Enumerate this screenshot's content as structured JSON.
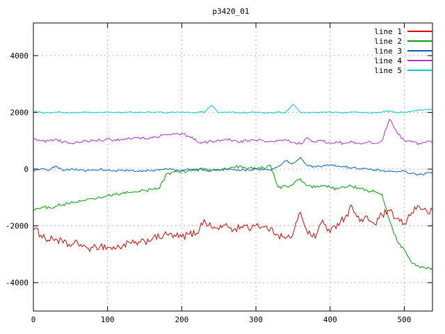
{
  "chart_data": {
    "type": "line",
    "title": "p3420_01",
    "xlabel": "",
    "ylabel": "",
    "xlim": [
      0,
      538
    ],
    "ylim": [
      -5000,
      5150
    ],
    "x_ticks": [
      0,
      100,
      200,
      300,
      400,
      500
    ],
    "y_ticks": [
      -4000,
      -2000,
      0,
      2000,
      4000
    ],
    "grid": true,
    "legend_position": "top-right",
    "x_step": 10,
    "series": [
      {
        "name": "line 1",
        "color": "#dd0000",
        "noise": 130,
        "values": [
          -2100,
          -2300,
          -2500,
          -2450,
          -2600,
          -2700,
          -2600,
          -2750,
          -2800,
          -2700,
          -2750,
          -2800,
          -2700,
          -2600,
          -2650,
          -2550,
          -2450,
          -2400,
          -2300,
          -2350,
          -2400,
          -2300,
          -2250,
          -1800,
          -2050,
          -2100,
          -1950,
          -2150,
          -2000,
          -2100,
          -1950,
          -2050,
          -2100,
          -2300,
          -2450,
          -2300,
          -1500,
          -2250,
          -2400,
          -1800,
          -2250,
          -1900,
          -1700,
          -1300,
          -1850,
          -1700,
          -1950,
          -1600,
          -1500,
          -1750,
          -1950,
          -1500,
          -1300,
          -1500
        ]
      },
      {
        "name": "line 2",
        "color": "#00a000",
        "noise": 60,
        "values": [
          -1400,
          -1380,
          -1340,
          -1300,
          -1250,
          -1200,
          -1150,
          -1100,
          -1050,
          -1000,
          -950,
          -900,
          -860,
          -820,
          -790,
          -760,
          -720,
          -680,
          -150,
          -100,
          -80,
          -50,
          -30,
          0,
          -60,
          -20,
          0,
          50,
          100,
          40,
          0,
          60,
          100,
          -650,
          -600,
          -550,
          -350,
          -600,
          -650,
          -600,
          -650,
          -700,
          -650,
          -600,
          -700,
          -750,
          -800,
          -900,
          -1800,
          -2500,
          -2850,
          -3300,
          -3450,
          -3500
        ]
      },
      {
        "name": "line 3",
        "color": "#0060c0",
        "noise": 40,
        "values": [
          -30,
          0,
          -60,
          100,
          -60,
          0,
          -30,
          -80,
          -30,
          0,
          -50,
          -60,
          -40,
          -60,
          -80,
          -60,
          -50,
          -30,
          0,
          -20,
          -40,
          -20,
          0,
          -30,
          -50,
          -30,
          0,
          -30,
          -50,
          -20,
          0,
          -20,
          -50,
          100,
          300,
          200,
          420,
          120,
          60,
          100,
          150,
          100,
          80,
          50,
          20,
          0,
          -20,
          -50,
          -80,
          -100,
          -80,
          -150,
          -200,
          -150
        ]
      },
      {
        "name": "line 4",
        "color": "#b030d0",
        "noise": 50,
        "values": [
          1050,
          1000,
          980,
          1060,
          950,
          920,
          950,
          980,
          1000,
          1020,
          1050,
          1030,
          1050,
          1080,
          1100,
          1080,
          1100,
          1150,
          1200,
          1230,
          1250,
          1150,
          1000,
          930,
          980,
          1020,
          1050,
          1000,
          980,
          1000,
          1020,
          1000,
          980,
          1000,
          1050,
          950,
          900,
          1100,
          950,
          1000,
          900,
          950,
          900,
          950,
          900,
          950,
          900,
          1000,
          1750,
          1300,
          1000,
          950,
          900,
          950
        ]
      },
      {
        "name": "line 5",
        "color": "#00cccc",
        "noise": 25,
        "values": [
          2020,
          2000,
          1990,
          2010,
          2000,
          1980,
          2000,
          2010,
          1990,
          2000,
          2010,
          1990,
          2000,
          2020,
          1990,
          2000,
          2010,
          2000,
          1980,
          2000,
          2000,
          1990,
          2010,
          2000,
          2250,
          1990,
          2000,
          2010,
          1990,
          2000,
          2000,
          1990,
          2000,
          2000,
          2000,
          2280,
          2010,
          1990,
          2000,
          2000,
          2010,
          1990,
          2000,
          2010,
          2000,
          1990,
          2000,
          2010,
          2050,
          2000,
          2000,
          2050,
          2080,
          2100
        ]
      }
    ]
  }
}
